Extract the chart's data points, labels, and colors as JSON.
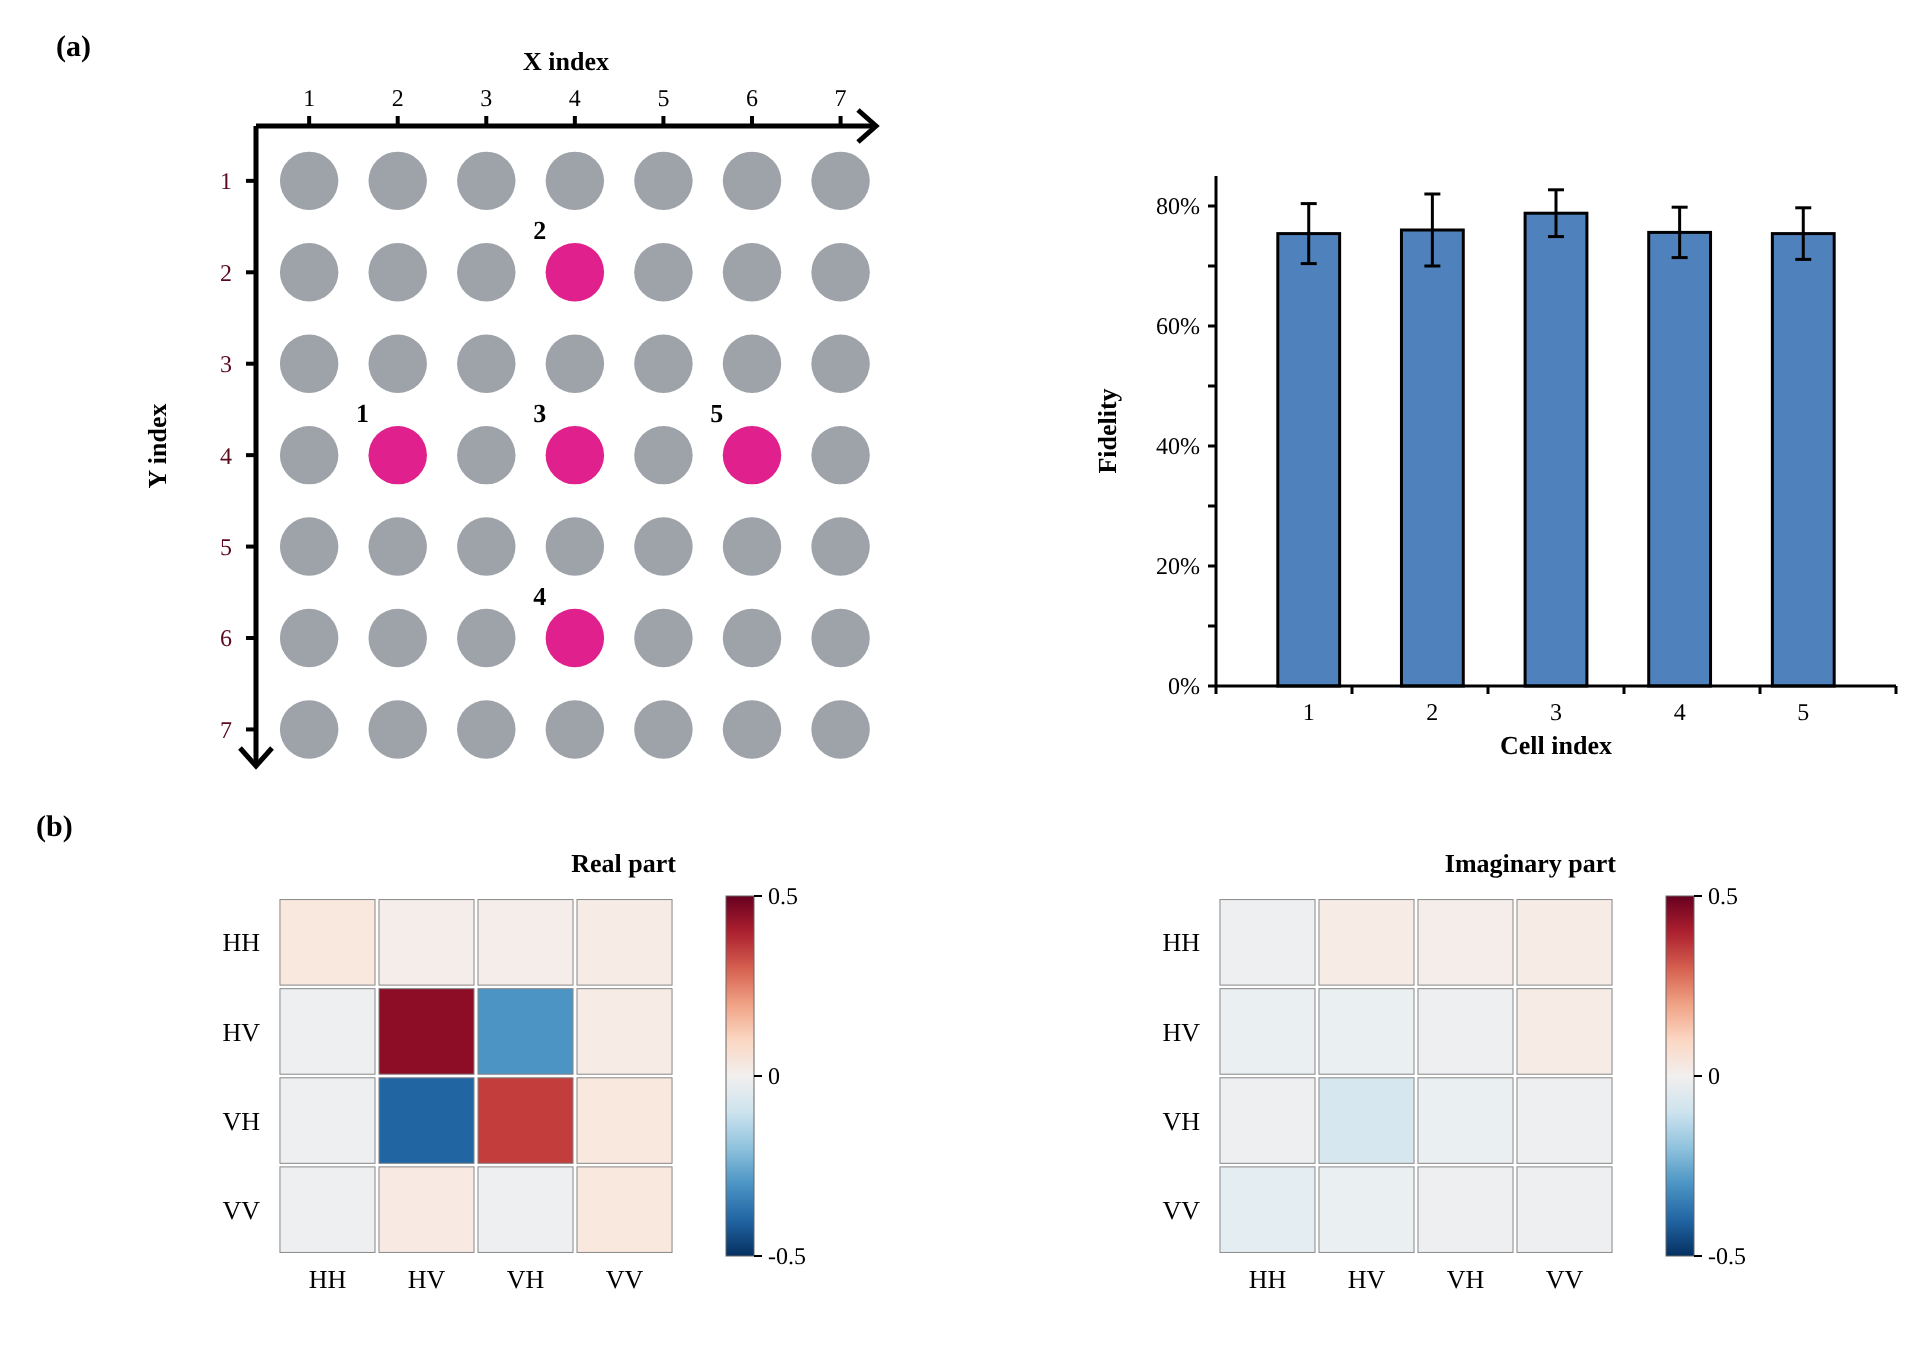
{
  "chart_data": [
    {
      "type": "scatter",
      "xlabel": "X index",
      "ylabel": "Y index",
      "xlim": [
        0.4,
        7.4
      ],
      "ylim": [
        7.4,
        0.4
      ],
      "xticks": [
        1,
        2,
        3,
        4,
        5,
        6,
        7
      ],
      "yticks": [
        1,
        2,
        3,
        4,
        5,
        6,
        7
      ],
      "marker": "circle",
      "series": [
        {
          "color": "#9ea3aa",
          "x": [
            1,
            2,
            3,
            4,
            5,
            6,
            7,
            1,
            2,
            3,
            5,
            6,
            7,
            1,
            2,
            3,
            4,
            5,
            6,
            7,
            1,
            3,
            5,
            7,
            1,
            2,
            3,
            4,
            5,
            6,
            7,
            1,
            2,
            3,
            5,
            6,
            7,
            1,
            2,
            3,
            4,
            5,
            6,
            7
          ],
          "values": [
            1,
            1,
            1,
            1,
            1,
            1,
            1,
            2,
            2,
            2,
            2,
            2,
            2,
            3,
            3,
            3,
            3,
            3,
            3,
            3,
            4,
            4,
            4,
            4,
            5,
            5,
            5,
            5,
            5,
            5,
            5,
            6,
            6,
            6,
            6,
            6,
            6,
            7,
            7,
            7,
            7,
            7,
            7,
            7
          ]
        },
        {
          "color": "#e0208c",
          "x": [
            2,
            4,
            4,
            4,
            6
          ],
          "values": [
            4,
            2,
            4,
            6,
            4
          ]
        }
      ],
      "annotations": [
        "(a)",
        {
          "text": "1",
          "x": 2,
          "y": 4
        },
        {
          "text": "2",
          "x": 4,
          "y": 2
        },
        {
          "text": "3",
          "x": 4,
          "y": 4
        },
        {
          "text": "4",
          "x": 4,
          "y": 6
        },
        {
          "text": "5",
          "x": 6,
          "y": 4
        }
      ]
    },
    {
      "type": "bar",
      "xlabel": "Cell index",
      "ylabel": "Fidelity",
      "categories": [
        "1",
        "2",
        "3",
        "4",
        "5"
      ],
      "values": [
        75.4,
        76,
        78.8,
        75.6,
        75.4
      ],
      "errors": [
        5,
        6,
        3.9,
        4.2,
        4.3
      ],
      "color": "#4f81bd",
      "ylim": [
        0,
        85
      ],
      "yticks": [
        {
          "value": 0,
          "label": "0%"
        },
        {
          "value": 10,
          "label": null
        },
        {
          "value": 20,
          "label": "20%"
        },
        {
          "value": 30,
          "label": null
        },
        {
          "value": 40,
          "label": "40%"
        },
        {
          "value": 50,
          "label": null
        },
        {
          "value": 60,
          "label": "60%"
        },
        {
          "value": 70,
          "label": null
        },
        {
          "value": 80,
          "label": "80%"
        }
      ]
    },
    {
      "type": "heatmap",
      "title": "Real part",
      "categories": [
        "HH",
        "HV",
        "VH",
        "VV"
      ],
      "y_categories": [
        "HH",
        "HV",
        "VH",
        "VV"
      ],
      "cells": [
        [
          0.05,
          0.02,
          0.02,
          0.03
        ],
        [
          -0.02,
          0.45,
          -0.3,
          0.03
        ],
        [
          -0.02,
          -0.4,
          0.35,
          0.05
        ],
        [
          -0.02,
          0.04,
          -0.02,
          0.05
        ]
      ],
      "clim": [
        -0.5,
        0.5
      ],
      "cticks": [
        -0.5,
        0,
        0.5
      ],
      "annotations": [
        "(b)"
      ]
    },
    {
      "type": "heatmap",
      "title": "Imaginary part",
      "categories": [
        "HH",
        "HV",
        "VH",
        "VV"
      ],
      "y_categories": [
        "HH",
        "HV",
        "VH",
        "VV"
      ],
      "cells": [
        [
          -0.02,
          0.03,
          0.02,
          0.03
        ],
        [
          -0.03,
          -0.03,
          -0.02,
          0.03
        ],
        [
          -0.02,
          -0.08,
          -0.03,
          -0.02
        ],
        [
          -0.05,
          -0.03,
          -0.02,
          -0.02
        ]
      ],
      "clim": [
        -0.5,
        0.5
      ],
      "cticks": [
        -0.5,
        0,
        0.5
      ]
    }
  ]
}
